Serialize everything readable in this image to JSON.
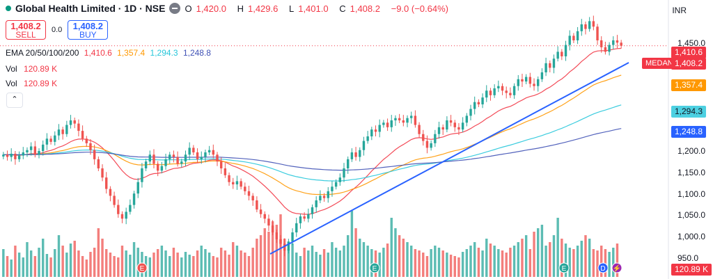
{
  "header": {
    "title": "Global Health Limited · 1D · NSE",
    "ohlc": {
      "o_label": "O",
      "o": "1,420.0",
      "h_label": "H",
      "h": "1,429.6",
      "l_label": "L",
      "l": "1,401.0",
      "c_label": "C",
      "c": "1,408.2",
      "change": "−9.0 (−0.64%)"
    }
  },
  "trade": {
    "sell_price": "1,408.2",
    "sell_label": "SELL",
    "spread": "0.0",
    "buy_price": "1,408.2",
    "buy_label": "BUY"
  },
  "ema": {
    "label": "EMA 20/50/100/200",
    "v20": "1,410.6",
    "v50": "1,357.4",
    "v100": "1,294.3",
    "v200": "1,248.8",
    "colors": {
      "ema20": "#f23645",
      "ema50": "#ff9800",
      "ema100": "#26c6da",
      "ema200": "#3f51b5"
    }
  },
  "volume_rows": [
    {
      "label": "Vol",
      "value": "120.89 K"
    },
    {
      "label": "Vol",
      "value": "120.89 K"
    }
  ],
  "currency": "INR",
  "symbol_tag": "MEDANTA",
  "price_tags": {
    "ema20": "1,410.6",
    "last": "1,408.2",
    "ema50": "1,357.4",
    "ema100": "1,294.3",
    "ema200": "1,248.8",
    "volume": "120.89 K"
  },
  "price_axis": [
    "1,450.0",
    "1,200.0",
    "1,150.0",
    "1,100.0",
    "1,050.0",
    "1,000.0",
    "950.0"
  ],
  "colors": {
    "up": "#26a69a",
    "down": "#ef5350",
    "trendline": "#2962ff",
    "sell": "#f23645",
    "buy": "#2962ff"
  },
  "chart_data": {
    "type": "candlestick",
    "ylim": [
      930,
      1490
    ],
    "last_close": 1408.2,
    "closes": [
      1170,
      1165,
      1172,
      1160,
      1168,
      1175,
      1180,
      1188,
      1170,
      1178,
      1192,
      1205,
      1198,
      1212,
      1225,
      1215,
      1235,
      1245,
      1238,
      1222,
      1205,
      1195,
      1180,
      1160,
      1140,
      1120,
      1095,
      1080,
      1060,
      1040,
      1030,
      1045,
      1060,
      1085,
      1110,
      1140,
      1155,
      1170,
      1150,
      1135,
      1145,
      1160,
      1170,
      1165,
      1150,
      1155,
      1170,
      1185,
      1175,
      1160,
      1165,
      1175,
      1180,
      1170,
      1155,
      1140,
      1125,
      1110,
      1105,
      1112,
      1100,
      1090,
      1080,
      1070,
      1050,
      1040,
      1030,
      1015,
      1000,
      985,
      975,
      960,
      980,
      1000,
      1020,
      1035,
      1030,
      1040,
      1055,
      1070,
      1080,
      1075,
      1090,
      1100,
      1110,
      1120,
      1140,
      1160,
      1175,
      1165,
      1180,
      1200,
      1210,
      1225,
      1220,
      1235,
      1240,
      1230,
      1245,
      1250,
      1245,
      1240,
      1250,
      1255,
      1235,
      1215,
      1200,
      1185,
      1195,
      1215,
      1230,
      1225,
      1245,
      1240,
      1230,
      1225,
      1240,
      1255,
      1270,
      1285,
      1280,
      1295,
      1310,
      1300,
      1315,
      1320,
      1310,
      1305,
      1300,
      1320,
      1335,
      1330,
      1340,
      1325,
      1320,
      1335,
      1350,
      1370,
      1360,
      1380,
      1395,
      1385,
      1410,
      1430,
      1420,
      1440,
      1455,
      1445,
      1462,
      1450,
      1420,
      1405,
      1395,
      1410,
      1420,
      1415,
      1408.2
    ],
    "volumes": [
      40,
      30,
      25,
      45,
      35,
      28,
      50,
      38,
      30,
      42,
      55,
      33,
      28,
      40,
      60,
      45,
      35,
      48,
      52,
      38,
      30,
      25,
      36,
      42,
      70,
      55,
      40,
      35,
      30,
      28,
      45,
      38,
      32,
      50,
      42,
      36,
      30,
      28,
      35,
      40,
      45,
      38,
      30,
      42,
      35,
      28,
      36,
      32,
      30,
      38,
      45,
      40,
      35,
      30,
      28,
      42,
      38,
      32,
      50,
      45,
      38,
      35,
      30,
      42,
      55,
      60,
      70,
      65,
      80,
      75,
      90,
      55,
      40,
      48,
      35,
      30,
      42,
      38,
      45,
      36,
      32,
      40,
      35,
      50,
      42,
      38,
      45,
      60,
      95,
      70,
      55,
      50,
      45,
      40,
      38,
      35,
      42,
      48,
      85,
      70,
      60,
      55,
      50,
      45,
      40,
      38,
      35,
      30,
      40,
      45,
      42,
      38,
      35,
      32,
      30,
      28,
      36,
      40,
      45,
      50,
      42,
      38,
      55,
      48,
      45,
      40,
      38,
      35,
      42,
      45,
      50,
      55,
      60,
      40,
      65,
      70,
      75,
      45,
      50,
      60,
      85,
      55,
      48,
      42,
      40,
      45,
      52,
      60,
      55,
      40,
      38,
      45,
      40,
      36,
      42,
      48
    ]
  }
}
